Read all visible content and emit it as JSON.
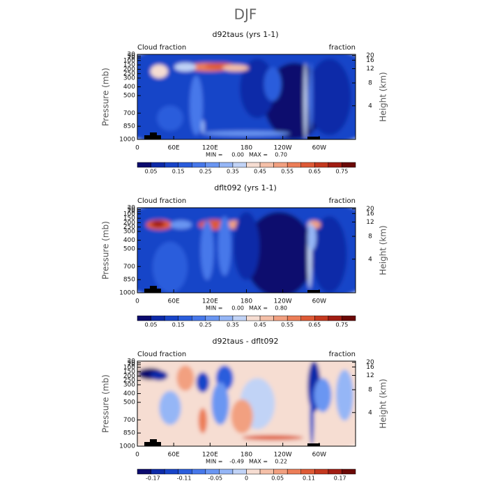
{
  "title": "DJF",
  "chart_data": [
    {
      "type": "contour",
      "title": "d92taus (yrs 1-1)",
      "left_label": "Cloud fraction",
      "right_label": "fraction",
      "ylabel": "Pressure (mb)",
      "y2label": "Height (km)",
      "xlim": [
        0,
        360
      ],
      "xticks": [
        0,
        {
          "value": 60,
          "label": "60E"
        },
        {
          "value": 120,
          "label": "120E"
        },
        180,
        {
          "value": 240,
          "label": "120W"
        },
        {
          "value": 300,
          "label": "60W"
        }
      ],
      "ylim": [
        1000,
        30
      ],
      "yticks": [
        1000,
        850,
        700,
        500,
        400,
        300,
        250,
        200,
        150,
        100,
        70,
        50,
        30
      ],
      "y2ticks": [
        4,
        8,
        12,
        16,
        20
      ],
      "min_label": "MIN =",
      "min": "0.00",
      "max_label": "MAX =",
      "max": "0.70",
      "colors": [
        "#0b0a6e",
        "#0d2aa8",
        "#1844c8",
        "#2a5ddc",
        "#4778ea",
        "#6a96f2",
        "#95b6f6",
        "#c1d3f6",
        "#f6ddd2",
        "#f5c0a8",
        "#f2a080",
        "#ec7e58",
        "#de5a36",
        "#c4391f",
        "#a11c12",
        "#6b0906"
      ],
      "colorbar_ticks": [
        0.05,
        0.15,
        0.25,
        0.35,
        0.45,
        0.55,
        0.65,
        0.75
      ]
    },
    {
      "type": "contour",
      "title": "dflt092 (yrs 1-1)",
      "left_label": "Cloud fraction",
      "right_label": "fraction",
      "ylabel": "Pressure (mb)",
      "y2label": "Height (km)",
      "xlim": [
        0,
        360
      ],
      "xticks": [
        0,
        {
          "value": 60,
          "label": "60E"
        },
        {
          "value": 120,
          "label": "120E"
        },
        180,
        {
          "value": 240,
          "label": "120W"
        },
        {
          "value": 300,
          "label": "60W"
        }
      ],
      "ylim": [
        1000,
        30
      ],
      "yticks": [
        1000,
        850,
        700,
        500,
        400,
        300,
        250,
        200,
        150,
        100,
        70,
        50,
        30
      ],
      "y2ticks": [
        4,
        8,
        12,
        16,
        20
      ],
      "min_label": "MIN =",
      "min": "0.00",
      "max_label": "MAX =",
      "max": "0.80",
      "colors": [
        "#0b0a6e",
        "#0d2aa8",
        "#1844c8",
        "#2a5ddc",
        "#4778ea",
        "#6a96f2",
        "#95b6f6",
        "#c1d3f6",
        "#f6ddd2",
        "#f5c0a8",
        "#f2a080",
        "#ec7e58",
        "#de5a36",
        "#c4391f",
        "#a11c12",
        "#6b0906"
      ],
      "colorbar_ticks": [
        0.05,
        0.15,
        0.25,
        0.35,
        0.45,
        0.55,
        0.65,
        0.75
      ]
    },
    {
      "type": "contour",
      "title": "d92taus - dflt092",
      "left_label": "Cloud fraction",
      "right_label": "fraction",
      "ylabel": "Pressure (mb)",
      "y2label": "Height (km)",
      "xlim": [
        0,
        360
      ],
      "xticks": [
        0,
        {
          "value": 60,
          "label": "60E"
        },
        {
          "value": 120,
          "label": "120E"
        },
        180,
        {
          "value": 240,
          "label": "120W"
        },
        {
          "value": 300,
          "label": "60W"
        }
      ],
      "ylim": [
        1000,
        30
      ],
      "yticks": [
        1000,
        850,
        700,
        500,
        400,
        300,
        250,
        200,
        150,
        100,
        70,
        50,
        30
      ],
      "y2ticks": [
        4,
        8,
        12,
        16,
        20
      ],
      "min_label": "MIN =",
      "min": "-0.49",
      "max_label": "MAX =",
      "max": "0.22",
      "colors": [
        "#0b0a6e",
        "#0d2aa8",
        "#1844c8",
        "#2a5ddc",
        "#4778ea",
        "#6a96f2",
        "#95b6f6",
        "#c1d3f6",
        "#f6ddd2",
        "#f5c0a8",
        "#f2a080",
        "#ec7e58",
        "#de5a36",
        "#c4391f",
        "#a11c12",
        "#6b0906"
      ],
      "colorbar_ticks": [
        -0.17,
        -0.11,
        -0.05,
        0,
        0.05,
        0.11,
        0.17
      ]
    }
  ]
}
